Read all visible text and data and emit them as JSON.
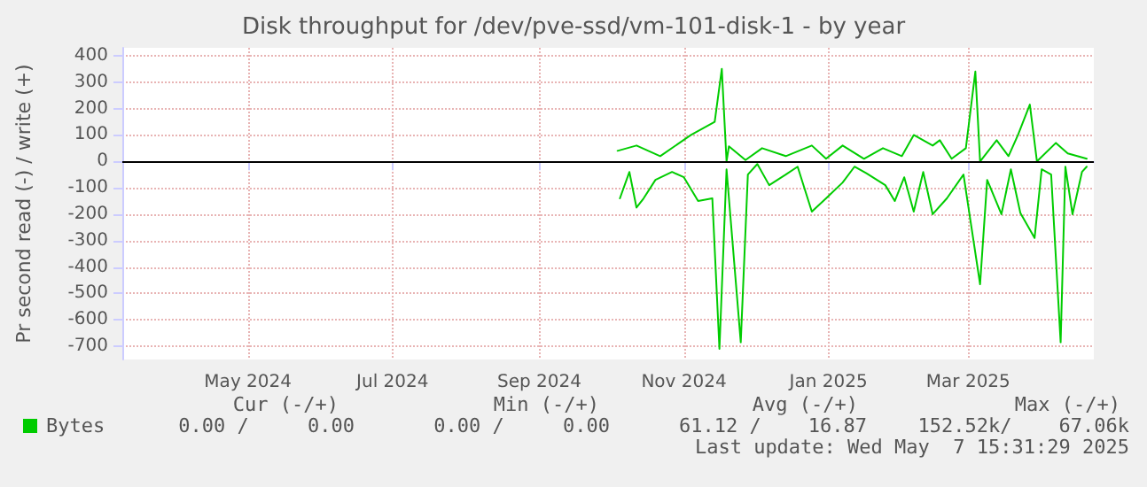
{
  "chart_data": {
    "type": "line",
    "title": "Disk throughput for /dev/pve-ssd/vm-101-disk-1 - by year",
    "ylabel": "Pr second read (-) / write (+)",
    "series": [
      {
        "name": "Bytes",
        "color": "#00cc00",
        "x": [
          "2024-10-18",
          "2024-10-26",
          "2024-11-05",
          "2024-11-18",
          "2024-11-28",
          "2024-12-01",
          "2024-12-03",
          "2024-12-04",
          "2024-12-11",
          "2024-12-18",
          "2024-12-28",
          "2025-01-08",
          "2025-01-14",
          "2025-01-21",
          "2025-01-30",
          "2025-02-07",
          "2025-02-15",
          "2025-02-20",
          "2025-02-28",
          "2025-03-03",
          "2025-03-08",
          "2025-03-14",
          "2025-03-18",
          "2025-03-20",
          "2025-03-27",
          "2025-04-01",
          "2025-04-05",
          "2025-04-10",
          "2025-04-13",
          "2025-04-21",
          "2025-04-26",
          "2025-05-04"
        ],
        "values": [
          40,
          60,
          20,
          100,
          150,
          350,
          0,
          57,
          5,
          50,
          20,
          60,
          10,
          60,
          10,
          50,
          20,
          100,
          60,
          80,
          10,
          50,
          340,
          0,
          80,
          20,
          100,
          215,
          0,
          70,
          30,
          10
        ]
      },
      {
        "color": "#00cc00",
        "x": [
          "2024-10-19",
          "2024-10-23",
          "2024-10-26",
          "2024-10-29",
          "2024-11-03",
          "2024-11-10",
          "2024-11-15",
          "2024-11-21",
          "2024-11-27",
          "2024-11-30",
          "2024-12-03",
          "2024-12-09",
          "2024-12-12",
          "2024-12-16",
          "2024-12-21",
          "2024-12-28",
          "2025-01-02",
          "2025-01-08",
          "2025-01-14",
          "2025-01-21",
          "2025-01-26",
          "2025-01-31",
          "2025-02-08",
          "2025-02-12",
          "2025-02-16",
          "2025-02-20",
          "2025-02-24",
          "2025-02-28",
          "2025-03-06",
          "2025-03-13",
          "2025-03-20",
          "2025-03-23",
          "2025-03-29",
          "2025-04-02",
          "2025-04-06",
          "2025-04-12",
          "2025-04-15",
          "2025-04-19",
          "2025-04-23",
          "2025-04-25",
          "2025-04-28",
          "2025-05-02",
          "2025-05-04"
        ],
        "values": [
          -140,
          -40,
          -175,
          -140,
          -70,
          -40,
          -60,
          -150,
          -140,
          -710,
          -30,
          -685,
          -50,
          -10,
          -90,
          -50,
          -20,
          -190,
          -140,
          -80,
          -20,
          -45,
          -90,
          -150,
          -60,
          -190,
          -40,
          -200,
          -140,
          -50,
          -465,
          -70,
          -200,
          -30,
          -195,
          -290,
          -30,
          -50,
          -685,
          -20,
          -200,
          -40,
          -20
        ]
      }
    ],
    "xlim": [
      "2024-03-23",
      "2025-05-07"
    ],
    "xticks": [
      {
        "value": "2024-05-15",
        "label": "May 2024"
      },
      {
        "value": "2024-07-15",
        "label": "Jul 2024"
      },
      {
        "value": "2024-09-15",
        "label": "Sep 2024"
      },
      {
        "value": "2024-11-15",
        "label": "Nov 2024"
      },
      {
        "value": "2025-01-15",
        "label": "Jan 2025"
      },
      {
        "value": "2025-03-15",
        "label": "Mar 2025"
      }
    ],
    "ylim": [
      -750,
      430
    ],
    "yticks": [
      -700,
      -600,
      -500,
      -400,
      -300,
      -200,
      -100,
      0,
      100,
      200,
      300,
      400
    ],
    "ref_lines": [
      {
        "axis": "y",
        "value": 0,
        "color": "#000000"
      }
    ],
    "grid": true,
    "legend": "bottom left",
    "marker": "none",
    "line_style": "solid",
    "annotations": [
      "Cur (-/+)",
      "Min (-/+)",
      "Avg (-/+)",
      "Max (-/+)",
      "0.00 /     0.00",
      "0.00 /     0.00",
      "61.12 /    16.87",
      "152.52k/    67.06k",
      "Last update: Wed May  7 15:31:29 2025"
    ]
  }
}
